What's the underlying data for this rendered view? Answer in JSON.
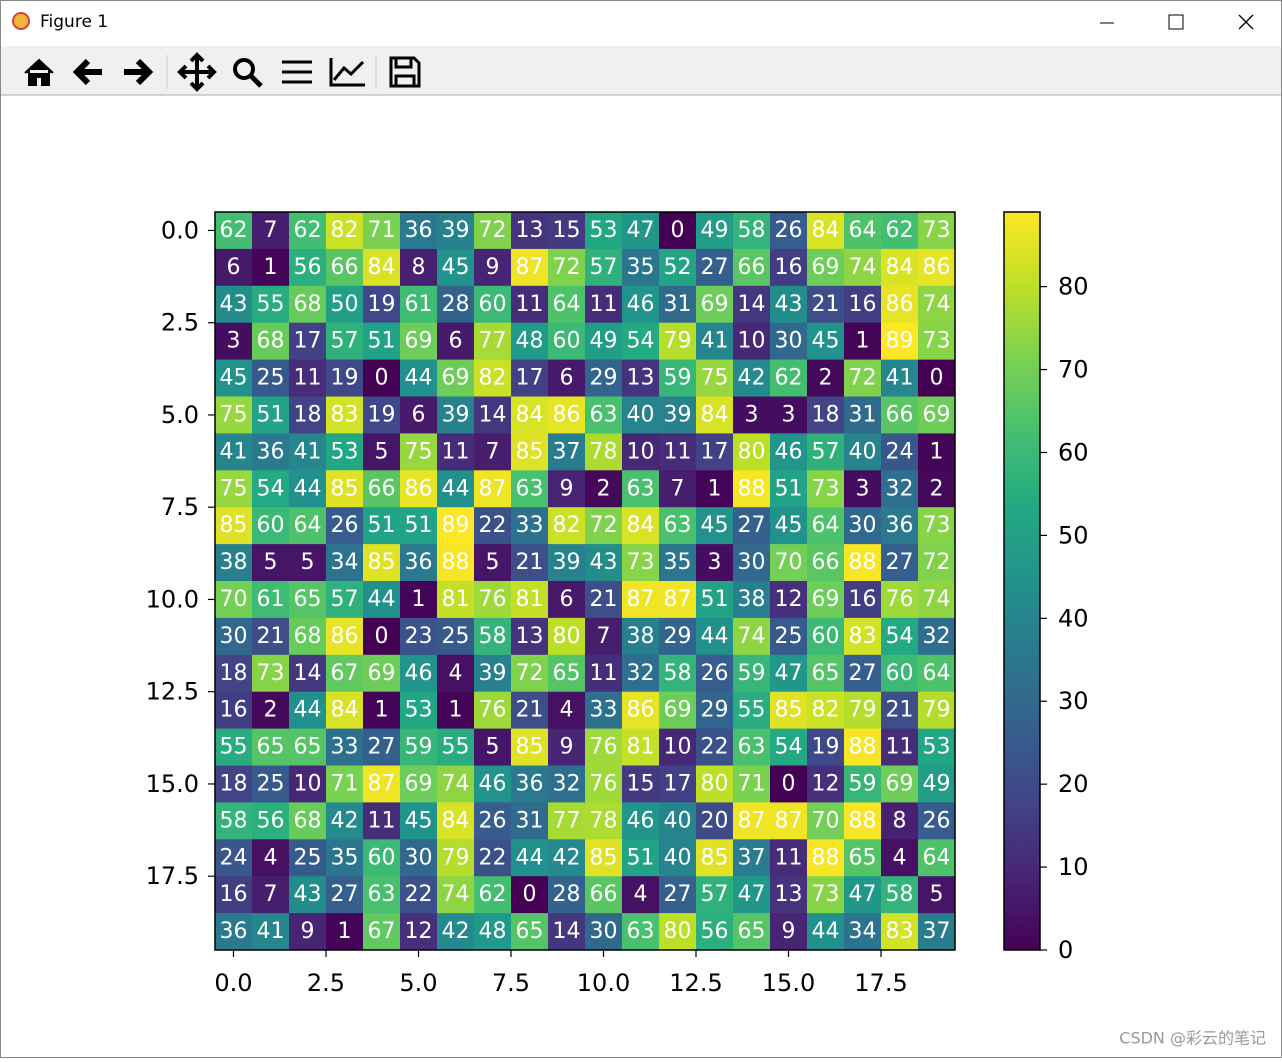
{
  "window": {
    "title": "Figure 1"
  },
  "chart_data": {
    "type": "heatmap",
    "colormap": "viridis",
    "annotation_color": "#ffffff",
    "values": [
      [
        62,
        7,
        62,
        82,
        71,
        36,
        39,
        72,
        13,
        15,
        53,
        47,
        0,
        49,
        58,
        26,
        84,
        64,
        62,
        73
      ],
      [
        6,
        1,
        56,
        66,
        84,
        8,
        45,
        9,
        87,
        72,
        57,
        35,
        52,
        27,
        66,
        16,
        69,
        74,
        84,
        86
      ],
      [
        43,
        55,
        68,
        50,
        19,
        61,
        28,
        60,
        11,
        64,
        11,
        46,
        31,
        69,
        14,
        43,
        21,
        16,
        86,
        74
      ],
      [
        3,
        68,
        17,
        57,
        51,
        69,
        6,
        77,
        48,
        60,
        49,
        54,
        79,
        41,
        10,
        30,
        45,
        1,
        89,
        73
      ],
      [
        45,
        25,
        11,
        19,
        0,
        44,
        69,
        82,
        17,
        6,
        29,
        13,
        59,
        75,
        42,
        62,
        2,
        72,
        41,
        0
      ],
      [
        75,
        51,
        18,
        83,
        19,
        6,
        39,
        14,
        84,
        86,
        63,
        40,
        39,
        84,
        3,
        3,
        18,
        31,
        66,
        69
      ],
      [
        41,
        36,
        41,
        53,
        5,
        75,
        11,
        7,
        85,
        37,
        78,
        10,
        11,
        17,
        80,
        46,
        57,
        40,
        24,
        1
      ],
      [
        75,
        54,
        44,
        85,
        66,
        86,
        44,
        87,
        63,
        9,
        2,
        63,
        7,
        1,
        88,
        51,
        73,
        3,
        32,
        2
      ],
      [
        85,
        60,
        64,
        26,
        51,
        51,
        89,
        22,
        33,
        82,
        72,
        84,
        63,
        45,
        27,
        45,
        64,
        30,
        36,
        73
      ],
      [
        38,
        5,
        5,
        34,
        85,
        36,
        88,
        5,
        21,
        39,
        43,
        73,
        35,
        3,
        30,
        70,
        66,
        88,
        27,
        72
      ],
      [
        70,
        61,
        65,
        57,
        44,
        1,
        81,
        76,
        81,
        6,
        21,
        87,
        87,
        51,
        38,
        12,
        69,
        16,
        76,
        74
      ],
      [
        30,
        21,
        68,
        86,
        0,
        23,
        25,
        58,
        13,
        80,
        7,
        38,
        29,
        44,
        74,
        25,
        60,
        83,
        54,
        32
      ],
      [
        18,
        73,
        14,
        67,
        69,
        46,
        4,
        39,
        72,
        65,
        11,
        32,
        58,
        26,
        59,
        47,
        65,
        27,
        60,
        64
      ],
      [
        16,
        2,
        44,
        84,
        1,
        53,
        1,
        76,
        21,
        4,
        33,
        86,
        69,
        29,
        55,
        85,
        82,
        79,
        21,
        79
      ],
      [
        55,
        65,
        65,
        33,
        27,
        59,
        55,
        5,
        85,
        9,
        76,
        81,
        10,
        22,
        63,
        54,
        19,
        88,
        11,
        53
      ],
      [
        18,
        25,
        10,
        71,
        87,
        69,
        74,
        46,
        36,
        32,
        76,
        15,
        17,
        80,
        71,
        0,
        12,
        59,
        69,
        49
      ],
      [
        58,
        56,
        68,
        42,
        11,
        45,
        84,
        26,
        31,
        77,
        78,
        46,
        40,
        20,
        87,
        87,
        70,
        88,
        8,
        26
      ],
      [
        24,
        4,
        25,
        35,
        60,
        30,
        79,
        22,
        44,
        42,
        85,
        51,
        40,
        85,
        37,
        11,
        88,
        65,
        4,
        64
      ],
      [
        16,
        7,
        43,
        27,
        63,
        22,
        74,
        62,
        0,
        28,
        66,
        4,
        27,
        57,
        47,
        13,
        73,
        47,
        58,
        5
      ],
      [
        36,
        41,
        9,
        1,
        67,
        12,
        42,
        48,
        65,
        14,
        30,
        63,
        80,
        56,
        65,
        9,
        44,
        34,
        83,
        37
      ]
    ],
    "xlim": [
      -0.5,
      19.5
    ],
    "ylim": [
      19.5,
      -0.5
    ],
    "xticks": [
      {
        "value": 0,
        "label": "0.0"
      },
      2.5,
      {
        "value": 5,
        "label": "5.0"
      },
      7.5,
      {
        "value": 10,
        "label": "10.0"
      },
      12.5,
      {
        "value": 15,
        "label": "15.0"
      },
      17.5
    ],
    "yticks": [
      {
        "value": 0,
        "label": "0.0"
      },
      2.5,
      {
        "value": 5,
        "label": "5.0"
      },
      7.5,
      {
        "value": 10,
        "label": "10.0"
      },
      12.5,
      {
        "value": 15,
        "label": "15.0"
      },
      17.5
    ],
    "colorbar": {
      "lim": [
        0,
        89
      ],
      "ticks": [
        0,
        10,
        20,
        30,
        40,
        50,
        60,
        70,
        80
      ]
    }
  },
  "watermark": "CSDN @彩云的笔记"
}
